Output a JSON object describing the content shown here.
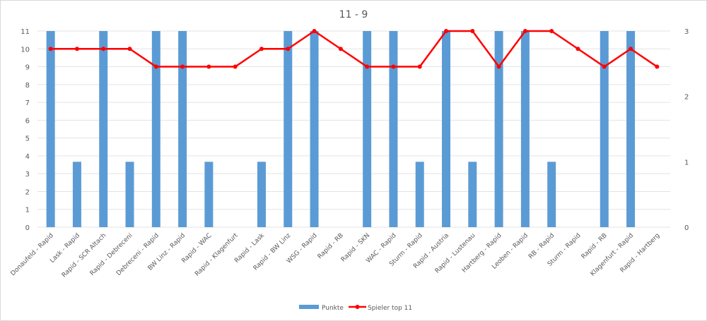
{
  "chart_data": {
    "type": "bar",
    "title": "11 - 9",
    "categories": [
      "Donaufeld - Rapid",
      "Lask - Rapid",
      "Rapid - SCR Altach",
      "Rapid - Debreceni",
      "Debreceni - Rapid",
      "BW Linz - Rapid",
      "Rapid - WAC",
      "Rapid - Klagenfurt",
      "Rapid - Lask",
      "Rapid - BW Linz",
      "WSG - Rapid",
      "Rapid - RB",
      "Rapid - SKN",
      "WAC - Rapid",
      "Sturm - Rapid",
      "Rapid - Austria",
      "Rapid - Lustenau",
      "Hartberg - Rapid",
      "Leoben - Rapid",
      "RB - Rapid",
      "Sturm - Rapid",
      "Rapid - RB",
      "Klagenfurt - Rapid",
      "Rapid - Hartberg"
    ],
    "series": [
      {
        "name": "Punkte",
        "type": "bar",
        "axis": "secondary",
        "color": "#5b9bd5",
        "values": [
          3,
          1,
          3,
          1,
          3,
          3,
          1,
          0,
          1,
          3,
          3,
          0,
          3,
          3,
          1,
          3,
          1,
          3,
          3,
          1,
          0,
          3,
          3,
          0
        ]
      },
      {
        "name": "Spieler top 11",
        "type": "line",
        "axis": "primary",
        "color": "#ff0000",
        "values": [
          10,
          10,
          10,
          10,
          9,
          9,
          9,
          9,
          10,
          10,
          11,
          10,
          9,
          9,
          9,
          11,
          11,
          9,
          11,
          11,
          10,
          9,
          10,
          9
        ]
      }
    ],
    "y_primary": {
      "ylim": [
        0,
        11
      ],
      "ticks": [
        0,
        1,
        2,
        3,
        4,
        5,
        6,
        7,
        8,
        9,
        10,
        11
      ]
    },
    "y_secondary": {
      "ylim": [
        0,
        3
      ],
      "ticks": [
        0,
        1,
        2,
        3
      ]
    },
    "xlabel": "",
    "ylabel": "",
    "grid": true,
    "legend_position": "bottom"
  },
  "legend": [
    {
      "label": "Punkte",
      "kind": "bar"
    },
    {
      "label": "Spieler top 11",
      "kind": "line"
    }
  ]
}
